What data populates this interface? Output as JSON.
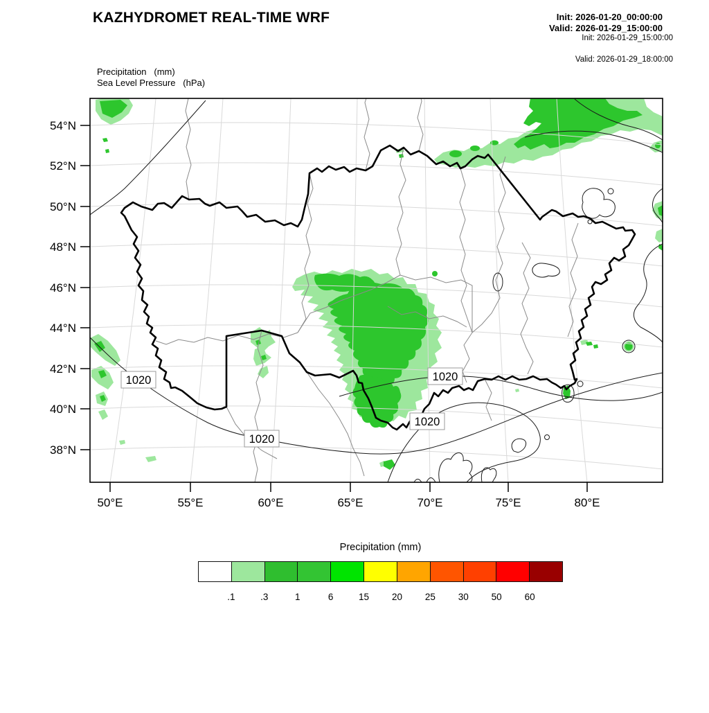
{
  "header": {
    "title": "KAZHYDROMET REAL-TIME WRF",
    "init_bold": "Init: 2026-01-20_00:00:00",
    "valid_bold": "Valid: 2026-01-29_15:00:00",
    "init_small": "Init: 2026-01-29_15:00:00",
    "valid_small": "Valid: 2026-01-29_18:00:00"
  },
  "variables": {
    "line1": "Precipitation   (mm)",
    "line2": "Sea Level Pressure   (hPa)"
  },
  "map": {
    "isobar_label": "1020",
    "colors": {
      "precip_light": "#9DE79D",
      "precip_medium": "#2DC62D",
      "border": "#000000",
      "oblast": "#8a8a8a",
      "graticule": "#d9d9d9",
      "isobar": "#1a1a1a"
    }
  },
  "axes": {
    "lat": [
      "54°N",
      "52°N",
      "50°N",
      "48°N",
      "46°N",
      "44°N",
      "42°N",
      "40°N",
      "38°N"
    ],
    "lon": [
      "50°E",
      "55°E",
      "60°E",
      "65°E",
      "70°E",
      "75°E",
      "80°E"
    ]
  },
  "legend": {
    "title": "Precipitation (mm)",
    "thresholds": [
      ".1",
      ".3",
      "1",
      "6",
      "15",
      "20",
      "25",
      "30",
      "50",
      "60"
    ],
    "colors": [
      "#FFFFFF",
      "#9DE79D",
      "#2FBE2F",
      "#33C433",
      "#00E400",
      "#FFFF00",
      "#FFA500",
      "#FF5500",
      "#FF4000",
      "#FF0000",
      "#990000"
    ]
  }
}
